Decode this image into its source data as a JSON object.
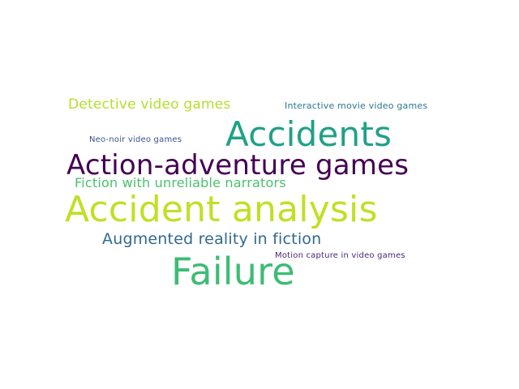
{
  "wordcloud": {
    "background": "#ffffff",
    "words": [
      {
        "id": "detective",
        "text": "Detective video games",
        "color": "#b5de2b"
      },
      {
        "id": "interactive",
        "text": "Interactive movie video games",
        "color": "#2a788e"
      },
      {
        "id": "accidents",
        "text": "Accidents",
        "color": "#1fa187"
      },
      {
        "id": "neo-noir",
        "text": "Neo-noir video games",
        "color": "#3b528b"
      },
      {
        "id": "action",
        "text": "Action-adventure games",
        "color": "#440154"
      },
      {
        "id": "fiction-unreliable",
        "text": "Fiction with unreliable narrators",
        "color": "#4ac16d"
      },
      {
        "id": "accident-analysis",
        "text": "Accident analysis",
        "color": "#c2df23"
      },
      {
        "id": "augmented",
        "text": "Augmented reality in fiction",
        "color": "#31688e"
      },
      {
        "id": "motion-capture",
        "text": "Motion capture in video games",
        "color": "#482878"
      },
      {
        "id": "failure",
        "text": "Failure",
        "color": "#3dbc74"
      }
    ]
  }
}
